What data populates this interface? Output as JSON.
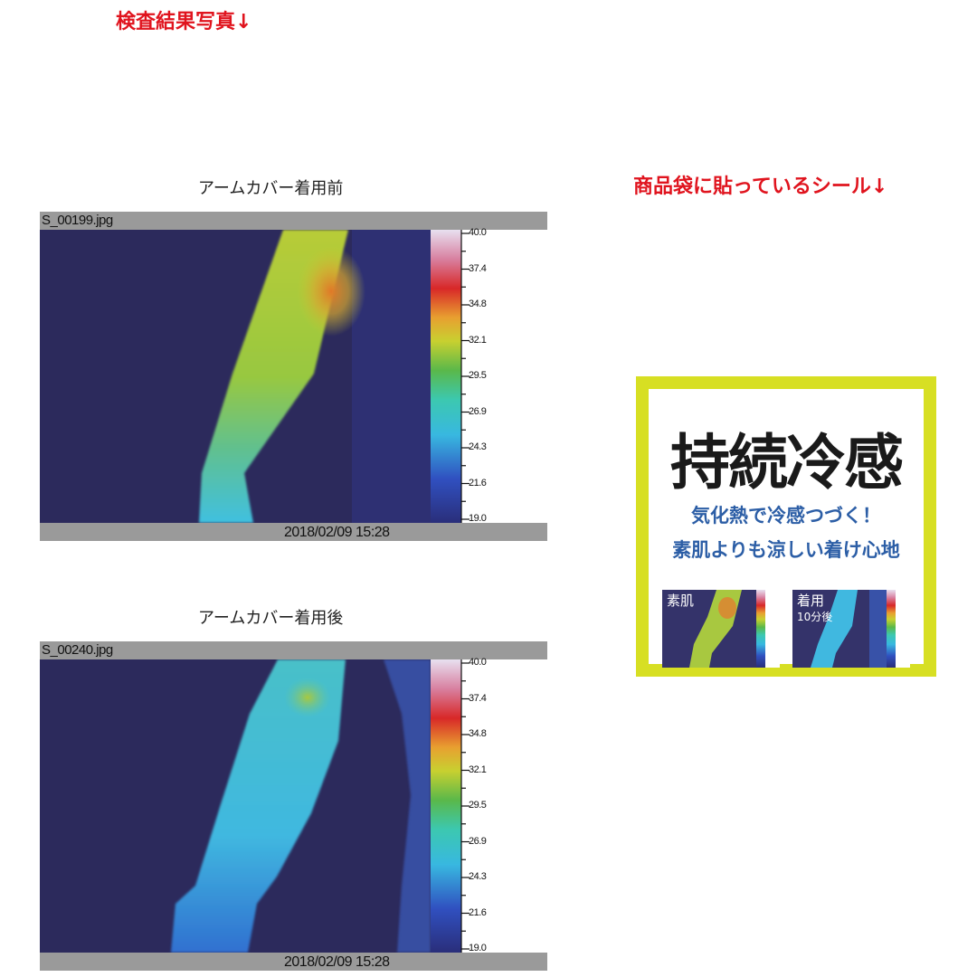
{
  "heading": "検査結果写真↓",
  "sticker_heading": "商品袋に貼っているシール↓",
  "panels": [
    {
      "caption": "アームカバー着用前",
      "filename": "S_00199.jpg",
      "timestamp": "2018/02/09 15:28"
    },
    {
      "caption": "アームカバー着用後",
      "filename": "S_00240.jpg",
      "timestamp": "2018/02/09 15:28"
    }
  ],
  "scale_ticks": [
    "40.0",
    "37.4",
    "34.8",
    "32.1",
    "29.5",
    "26.9",
    "24.3",
    "21.6",
    "19.0"
  ],
  "sticker": {
    "title": "持続冷感",
    "line1": "気化熱で冷感つづく！",
    "line2": "素肌よりも涼しい着け心地",
    "thumb1_label": "素肌",
    "thumb2_label": "着用",
    "thumb2_sublabel": "10分後",
    "border_color": "#d7df23",
    "text_color": "#2c5ea6"
  }
}
